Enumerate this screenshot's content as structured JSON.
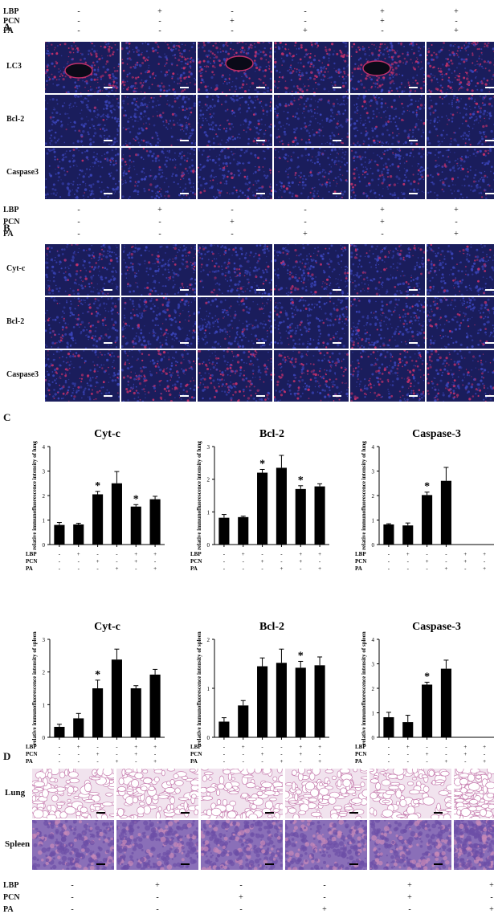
{
  "panels": {
    "a": "A",
    "b": "B",
    "c": "C",
    "d": "D"
  },
  "treatments": [
    "LBP",
    "PCN",
    "PA"
  ],
  "signs": [
    [
      "-",
      "+",
      "-",
      "-",
      "+",
      "+"
    ],
    [
      "-",
      "-",
      "+",
      "-",
      "+",
      "-"
    ],
    [
      "-",
      "-",
      "-",
      "+",
      "-",
      "+"
    ]
  ],
  "panel_a_rows": [
    "LC3",
    "Bcl-2",
    "Caspase3"
  ],
  "panel_b_rows": [
    "Cyt-c",
    "Bcl-2",
    "Caspase3"
  ],
  "panel_d_rows": [
    "Lung",
    "Spleen"
  ],
  "stain_colors": {
    "if_background": "#1a1d5c",
    "if_red": "#c0306a",
    "if_blue": "#3a44b8",
    "he_pink": "#e6bfd6",
    "he_purple": "#6c4fa6"
  },
  "chart_data": [
    {
      "type": "bar",
      "title": "Cyt-c",
      "ylabel": "relative immunofluorescence intensity of lung",
      "ylim": [
        0,
        4
      ],
      "yticks": [
        "0",
        "1",
        "2",
        "3",
        "4"
      ],
      "values": [
        0.8,
        0.82,
        2.05,
        2.5,
        1.55,
        1.85
      ],
      "errors": [
        0.1,
        0.05,
        0.12,
        0.48,
        0.08,
        0.12
      ],
      "significant": [
        false,
        false,
        true,
        false,
        true,
        false
      ]
    },
    {
      "type": "bar",
      "title": "Bcl-2",
      "ylabel": "relative immunofluorescence intensity of lung",
      "ylim": [
        0,
        3
      ],
      "yticks": [
        "0",
        "1",
        "2",
        "3"
      ],
      "values": [
        0.82,
        0.84,
        2.2,
        2.35,
        1.7,
        1.78
      ],
      "errors": [
        0.1,
        0.03,
        0.1,
        0.38,
        0.1,
        0.08
      ],
      "significant": [
        false,
        false,
        true,
        false,
        true,
        false
      ]
    },
    {
      "type": "bar",
      "title": "Caspase-3",
      "ylabel": "relative immunofluorescence intensity of lung",
      "ylim": [
        0,
        4
      ],
      "yticks": [
        "0",
        "1",
        "2",
        "3",
        "4"
      ],
      "values": [
        0.82,
        0.78,
        2.02,
        2.6
      ],
      "errors": [
        0.03,
        0.1,
        0.12,
        0.55
      ],
      "significant": [
        false,
        false,
        true,
        false
      ]
    },
    {
      "type": "bar",
      "title": "Cyt-c",
      "ylabel": "relative immunofluorescence intensity of spleen",
      "ylim": [
        0,
        3
      ],
      "yticks": [
        "0",
        "1",
        "2",
        "3"
      ],
      "values": [
        0.32,
        0.58,
        1.5,
        2.38,
        1.5,
        1.92
      ],
      "errors": [
        0.08,
        0.15,
        0.25,
        0.32,
        0.08,
        0.16
      ],
      "significant": [
        false,
        false,
        true,
        false,
        false,
        false
      ]
    },
    {
      "type": "bar",
      "title": "Bcl-2",
      "ylabel": "relative immunofluorescence intensity of spleen",
      "ylim": [
        0,
        2
      ],
      "yticks": [
        "0",
        "1",
        "2"
      ],
      "values": [
        0.32,
        0.65,
        1.45,
        1.52,
        1.42,
        1.47
      ],
      "errors": [
        0.08,
        0.1,
        0.17,
        0.28,
        0.13,
        0.17
      ],
      "significant": [
        false,
        false,
        false,
        false,
        true,
        false
      ]
    },
    {
      "type": "bar",
      "title": "Caspase-3",
      "ylabel": "relative immunofluorescence intensity of spleen",
      "ylim": [
        0,
        4
      ],
      "yticks": [
        "0",
        "1",
        "2",
        "3",
        "4"
      ],
      "values": [
        0.82,
        0.62,
        2.15,
        2.8
      ],
      "errors": [
        0.2,
        0.28,
        0.1,
        0.35
      ],
      "significant": [
        false,
        false,
        true,
        false
      ]
    }
  ],
  "chart_signs": [
    [
      "-",
      "+",
      "-",
      "-",
      "+",
      "+"
    ],
    [
      "-",
      "-",
      "+",
      "-",
      "+",
      "-"
    ],
    [
      "-",
      "-",
      "-",
      "+",
      "-",
      "+"
    ]
  ],
  "star": "*"
}
